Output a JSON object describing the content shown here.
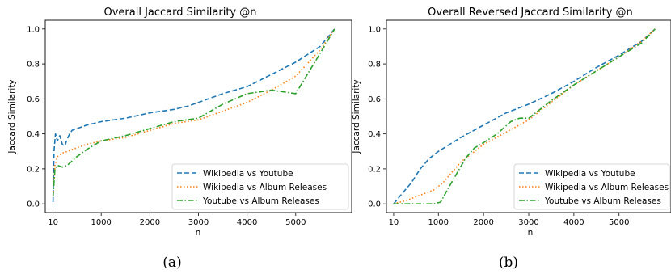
{
  "captions": [
    "(a)",
    "(b)"
  ],
  "chart_data": [
    {
      "type": "line",
      "title": "Overall Jaccard Similarity @n",
      "xlabel": "n",
      "ylabel": "Jaccard Similarity",
      "xlim": [
        -150,
        6150
      ],
      "ylim": [
        -0.05,
        1.05
      ],
      "xticks": [
        10,
        1000,
        2000,
        3000,
        4000,
        5000
      ],
      "xtick_labels": [
        "10",
        "1000",
        "2000",
        "3000",
        "4000",
        "5000"
      ],
      "yticks": [
        0.0,
        0.2,
        0.4,
        0.6,
        0.8,
        1.0
      ],
      "ytick_labels": [
        "0.0",
        "0.2",
        "0.4",
        "0.6",
        "0.8",
        "1.0"
      ],
      "grid": false,
      "legend_position": "lower-right",
      "series": [
        {
          "name": "Wikipedia vs Youtube",
          "color": "#1f77b4",
          "dash": "6,3",
          "x": [
            10,
            30,
            60,
            100,
            150,
            200,
            250,
            300,
            350,
            400,
            500,
            700,
            1000,
            1500,
            2000,
            2500,
            2800,
            3000,
            3500,
            4000,
            4500,
            5000,
            5500,
            5800
          ],
          "y": [
            0.01,
            0.3,
            0.4,
            0.36,
            0.39,
            0.34,
            0.33,
            0.37,
            0.4,
            0.42,
            0.43,
            0.45,
            0.47,
            0.49,
            0.52,
            0.54,
            0.56,
            0.58,
            0.63,
            0.67,
            0.74,
            0.81,
            0.9,
            1.0
          ]
        },
        {
          "name": "Wikipedia vs Album Releases",
          "color": "#ff7f0e",
          "dash": "1.5,2.5",
          "x": [
            10,
            50,
            100,
            200,
            300,
            500,
            700,
            1000,
            1500,
            2000,
            2500,
            3000,
            3500,
            4000,
            4500,
            5000,
            5500,
            5800
          ],
          "y": [
            0.05,
            0.22,
            0.27,
            0.29,
            0.3,
            0.32,
            0.34,
            0.36,
            0.38,
            0.42,
            0.46,
            0.48,
            0.53,
            0.58,
            0.65,
            0.73,
            0.88,
            1.0
          ]
        },
        {
          "name": "Youtube vs Album Releases",
          "color": "#2ca02c",
          "dash": "7,2.5,1.5,2.5",
          "x": [
            10,
            50,
            100,
            200,
            300,
            500,
            700,
            1000,
            1500,
            2000,
            2500,
            3000,
            3500,
            4000,
            4500,
            5000,
            5500,
            5800
          ],
          "y": [
            0.04,
            0.2,
            0.22,
            0.21,
            0.22,
            0.27,
            0.31,
            0.36,
            0.39,
            0.43,
            0.47,
            0.49,
            0.57,
            0.63,
            0.65,
            0.63,
            0.86,
            1.0
          ]
        }
      ]
    },
    {
      "type": "line",
      "title": "Overall Reversed Jaccard Similarity @n",
      "xlabel": "n",
      "ylabel": "Jaccard Similarity",
      "xlim": [
        -150,
        6150
      ],
      "ylim": [
        -0.05,
        1.05
      ],
      "xticks": [
        10,
        1000,
        2000,
        3000,
        4000,
        5000
      ],
      "xtick_labels": [
        "10",
        "1000",
        "2000",
        "3000",
        "4000",
        "5000"
      ],
      "yticks": [
        0.0,
        0.2,
        0.4,
        0.6,
        0.8,
        1.0
      ],
      "ytick_labels": [
        "0.0",
        "0.2",
        "0.4",
        "0.6",
        "0.8",
        "1.0"
      ],
      "grid": false,
      "legend_position": "lower-right",
      "series": [
        {
          "name": "Wikipedia vs Youtube",
          "color": "#1f77b4",
          "dash": "6,3",
          "x": [
            10,
            200,
            400,
            600,
            800,
            1000,
            1500,
            2000,
            2500,
            3000,
            3500,
            4000,
            4500,
            5000,
            5500,
            5800
          ],
          "y": [
            0.0,
            0.06,
            0.12,
            0.2,
            0.26,
            0.3,
            0.38,
            0.45,
            0.52,
            0.57,
            0.63,
            0.7,
            0.78,
            0.85,
            0.93,
            1.0
          ]
        },
        {
          "name": "Wikipedia vs Album Releases",
          "color": "#ff7f0e",
          "dash": "1.5,2.5",
          "x": [
            10,
            300,
            600,
            900,
            1100,
            1300,
            1500,
            1800,
            2000,
            2500,
            3000,
            3500,
            4000,
            4500,
            5000,
            5500,
            5800
          ],
          "y": [
            0.0,
            0.02,
            0.05,
            0.08,
            0.12,
            0.18,
            0.24,
            0.3,
            0.34,
            0.41,
            0.48,
            0.58,
            0.68,
            0.76,
            0.84,
            0.93,
            1.0
          ]
        },
        {
          "name": "Youtube vs Album Releases",
          "color": "#2ca02c",
          "dash": "7,2.5,1.5,2.5",
          "x": [
            10,
            300,
            600,
            900,
            1050,
            1200,
            1400,
            1600,
            1800,
            2000,
            2300,
            2600,
            2800,
            3000,
            3500,
            4000,
            4500,
            5000,
            5500,
            5800
          ],
          "y": [
            0.0,
            0.0,
            0.0,
            0.0,
            0.01,
            0.08,
            0.17,
            0.26,
            0.32,
            0.35,
            0.4,
            0.47,
            0.49,
            0.49,
            0.59,
            0.68,
            0.76,
            0.84,
            0.92,
            1.0
          ]
        }
      ]
    }
  ]
}
